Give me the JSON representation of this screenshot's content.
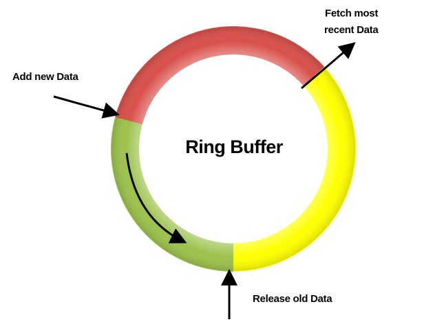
{
  "title": "Ring Buffer",
  "labels": {
    "add": "Add new Data",
    "fetch_line1": "Fetch most",
    "fetch_line2": "recent Data",
    "release": "Release old Data"
  },
  "segments": [
    {
      "name": "red",
      "color": "#d9504a"
    },
    {
      "name": "yellow",
      "color": "#ffff00"
    },
    {
      "name": "green",
      "color": "#9cc24c"
    }
  ]
}
